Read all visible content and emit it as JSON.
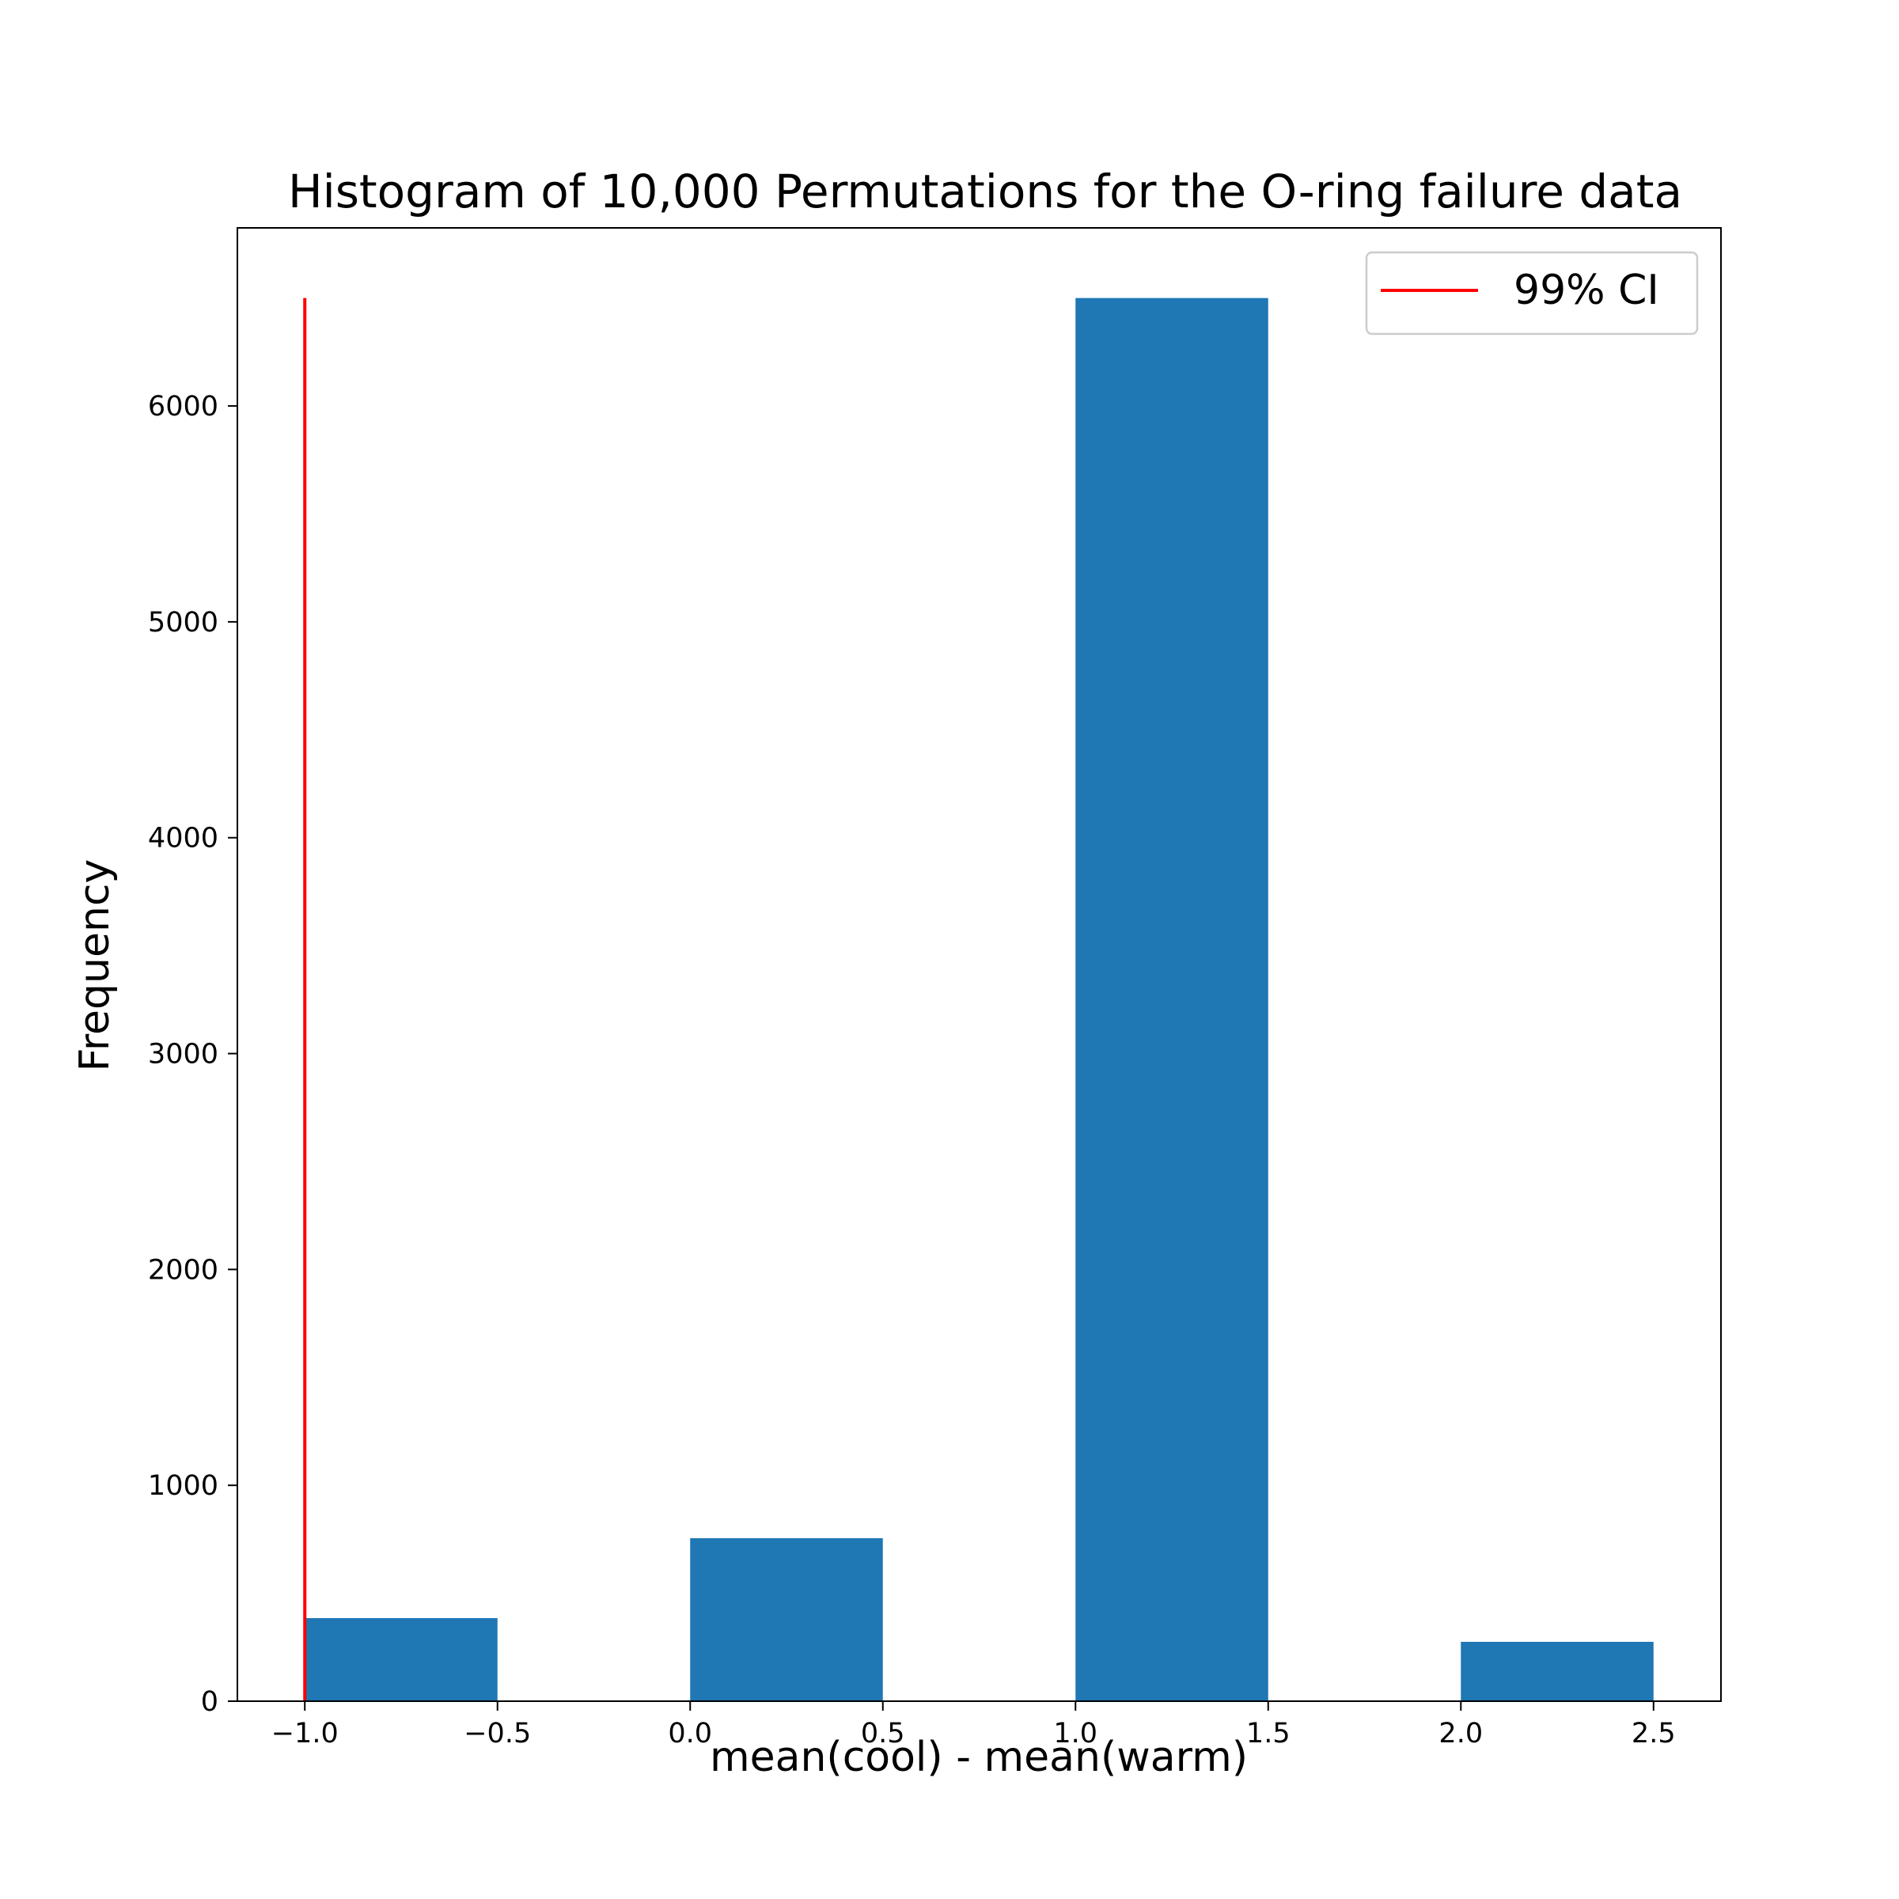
{
  "chart_data": {
    "type": "bar",
    "title": "Histogram of 10,000 Permutations for the O-ring failure data",
    "xlabel": "mean(cool) - mean(warm)",
    "ylabel": "Frequency",
    "xlim": [
      -1.175,
      2.675
    ],
    "ylim": [
      0,
      6825
    ],
    "bar_color": "#1f77b4",
    "bins": [
      {
        "x0": -1.0,
        "x1": -0.5,
        "value": 385
      },
      {
        "x0": 0.0,
        "x1": 0.5,
        "value": 755
      },
      {
        "x0": 1.0,
        "x1": 1.5,
        "value": 6500
      },
      {
        "x0": 2.0,
        "x1": 2.5,
        "value": 275
      }
    ],
    "xticks": [
      {
        "value": -1.0,
        "label": "−1.0"
      },
      {
        "value": -0.5,
        "label": "−0.5"
      },
      {
        "value": 0.0,
        "label": "0.0"
      },
      {
        "value": 0.5,
        "label": "0.5"
      },
      {
        "value": 1.0,
        "label": "1.0"
      },
      {
        "value": 1.5,
        "label": "1.5"
      },
      {
        "value": 2.0,
        "label": "2.0"
      },
      {
        "value": 2.5,
        "label": "2.5"
      }
    ],
    "yticks": [
      {
        "value": 0,
        "label": "0"
      },
      {
        "value": 1000,
        "label": "1000"
      },
      {
        "value": 2000,
        "label": "2000"
      },
      {
        "value": 3000,
        "label": "3000"
      },
      {
        "value": 4000,
        "label": "4000"
      },
      {
        "value": 5000,
        "label": "5000"
      },
      {
        "value": 6000,
        "label": "6000"
      }
    ],
    "ci_line": {
      "x": -1.0,
      "y0": 0,
      "y1": 6500,
      "color": "#ff0000",
      "label": "99% CI"
    },
    "legend": {
      "position": "top-right",
      "entries": [
        "99% CI"
      ]
    },
    "grid": false
  }
}
